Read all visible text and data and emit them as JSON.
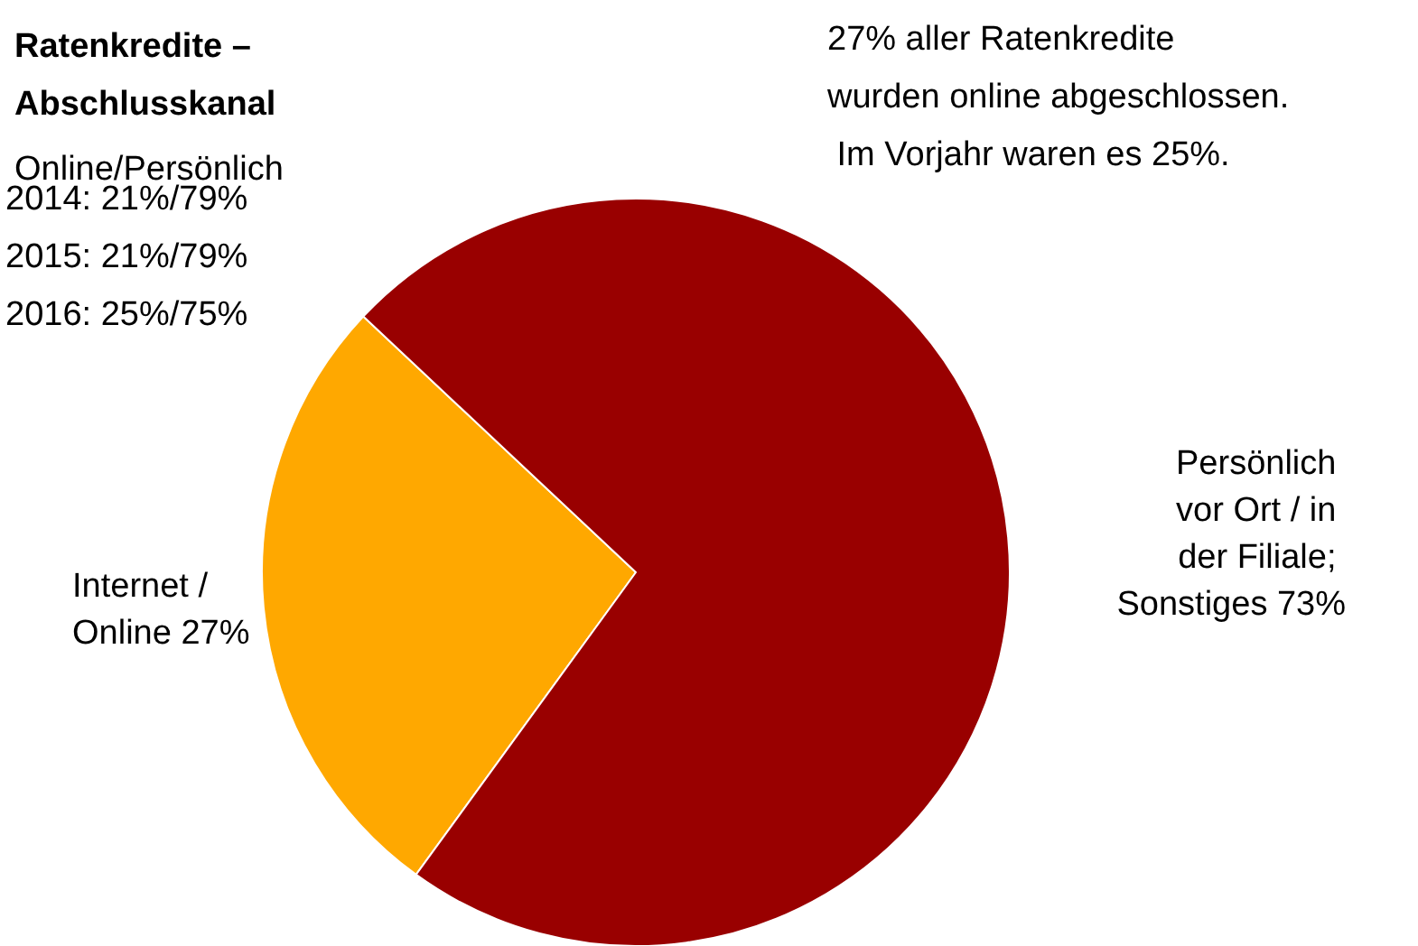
{
  "chart_data": {
    "type": "pie",
    "title": "Ratenkredite – Abschlusskanal",
    "subtitle": "Online/Persönlich",
    "annotations": [
      "2014: 21%/79%",
      "2015: 21%/79%",
      "2016: 25%/75%",
      "27% aller Ratenkredite wurden online abgeschlossen. Im Vorjahr waren es 25%."
    ],
    "categories": [
      "Internet / Online",
      "Persönlich vor Ort / in der Filiale; Sonstiges"
    ],
    "values": [
      27,
      73
    ],
    "colors": [
      "#ffa800",
      "#990000"
    ],
    "value_labels": [
      "27%",
      "73%"
    ],
    "legend": false
  }
}
